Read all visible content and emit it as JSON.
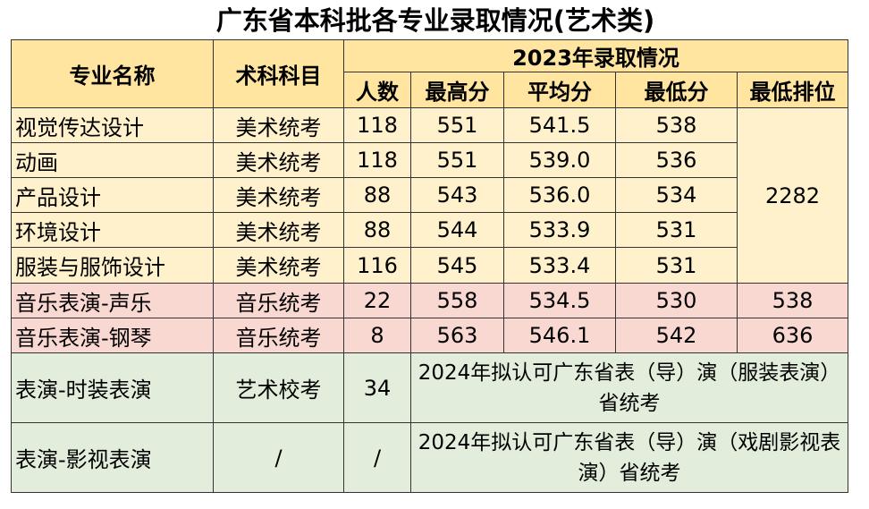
{
  "title": "广东省本科批各专业录取情况(艺术类)",
  "header": {
    "major": "专业名称",
    "subject": "术科科目",
    "group": "2023年录取情况",
    "count": "人数",
    "max": "最高分",
    "avg": "平均分",
    "min": "最低分",
    "rank": "最低排位"
  },
  "rows": [
    {
      "major": "视觉传达设计",
      "subject": "美术统考",
      "count": "118",
      "max": "551",
      "avg": "541.5",
      "min": "538"
    },
    {
      "major": "动画",
      "subject": "美术统考",
      "count": "118",
      "max": "551",
      "avg": "539.0",
      "min": "536"
    },
    {
      "major": "产品设计",
      "subject": "美术统考",
      "count": "88",
      "max": "543",
      "avg": "536.0",
      "min": "534"
    },
    {
      "major": "环境设计",
      "subject": "美术统考",
      "count": "88",
      "max": "544",
      "avg": "533.9",
      "min": "531"
    },
    {
      "major": "服装与服饰设计",
      "subject": "美术统考",
      "count": "116",
      "max": "545",
      "avg": "533.4",
      "min": "531"
    },
    {
      "major": "音乐表演-声乐",
      "subject": "音乐统考",
      "count": "22",
      "max": "558",
      "avg": "534.5",
      "min": "530",
      "rank": "538"
    },
    {
      "major": "音乐表演-钢琴",
      "subject": "音乐统考",
      "count": "8",
      "max": "563",
      "avg": "546.1",
      "min": "542",
      "rank": "636"
    },
    {
      "major": "表演-时装表演",
      "subject": "艺术校考",
      "count": "34",
      "note": "2024年拟认可广东省表（导）演（服装表演）省统考"
    },
    {
      "major": "表演-影视表演",
      "subject": "/",
      "count": "/",
      "note": "2024年拟认可广东省表（导）演（戏剧影视表演）省统考"
    }
  ],
  "art_rank": "2282",
  "colors": {
    "header": "#ffe5a0",
    "art": "#fff1cc",
    "music": "#fad8d2",
    "performance": "#e2eedb"
  }
}
